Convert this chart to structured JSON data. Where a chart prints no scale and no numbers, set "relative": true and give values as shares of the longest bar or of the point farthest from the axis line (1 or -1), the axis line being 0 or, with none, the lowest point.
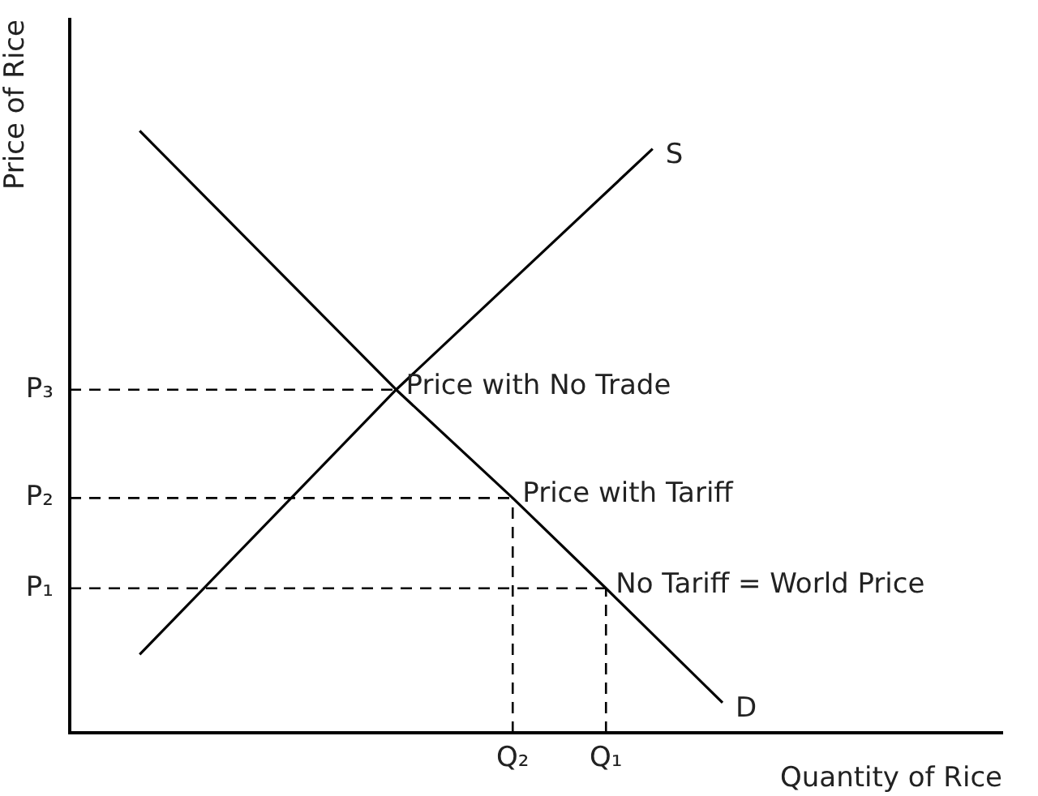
{
  "chart_data": {
    "type": "line",
    "relative": true,
    "xlabel": "Quantity of Rice",
    "ylabel": "Price of Rice",
    "grid": false,
    "legend": false,
    "marker": "none",
    "categories": [
      null,
      null,
      null,
      null,
      null,
      null,
      null,
      null,
      null,
      null,
      null,
      null,
      null,
      null,
      null,
      null,
      null,
      null,
      null,
      "Q₂",
      null,
      null,
      null,
      "Q₁",
      null,
      null,
      null,
      null,
      null,
      null,
      null,
      null,
      null,
      null,
      null,
      null,
      null,
      null,
      null,
      null,
      null
    ],
    "series": [
      {
        "name": "S",
        "color": "#000000",
        "values": [
          null,
          null,
          null,
          0.13,
          null,
          null,
          null,
          null,
          null,
          null,
          null,
          null,
          null,
          null,
          0.57,
          null,
          null,
          null,
          null,
          null,
          null,
          null,
          null,
          null,
          null,
          0.97,
          null,
          null,
          null,
          null,
          null,
          null,
          null,
          null,
          null,
          null,
          null,
          null,
          null,
          null,
          null
        ]
      },
      {
        "name": "D",
        "color": "#000000",
        "values": [
          null,
          null,
          null,
          1.0,
          null,
          null,
          null,
          null,
          null,
          null,
          null,
          null,
          null,
          null,
          0.57,
          null,
          null,
          null,
          null,
          0.39,
          null,
          null,
          null,
          0.24,
          null,
          null,
          null,
          null,
          0.05,
          null,
          null,
          null,
          null,
          null,
          null,
          null,
          null,
          null,
          null,
          null,
          null
        ]
      }
    ],
    "ref_lines": [
      {
        "axis": "y",
        "value": 0.57,
        "label": "P₃",
        "color": "#000000",
        "line_style": "dashed"
      },
      {
        "axis": "y",
        "value": 0.39,
        "label": "P₂",
        "color": "#000000",
        "line_style": "dashed"
      },
      {
        "axis": "y",
        "value": 0.24,
        "label": "P₁",
        "color": "#000000",
        "line_style": "dashed"
      },
      {
        "axis": "x",
        "value": "Q₂",
        "color": "#000000",
        "line_style": "dashed"
      },
      {
        "axis": "x",
        "value": "Q₁",
        "color": "#000000",
        "line_style": "dashed"
      }
    ],
    "annotations": [
      "Price with No Trade",
      {
        "text": "Price with Tariff",
        "x": "Q₂",
        "y": 0.39
      },
      {
        "text": "No Tariff = World Price",
        "x": "Q₁",
        "y": 0.24
      }
    ]
  }
}
